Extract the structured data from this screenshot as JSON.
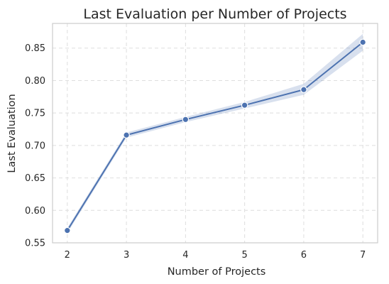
{
  "chart_data": {
    "type": "line",
    "title": "Last Evaluation per Number of Projects",
    "xlabel": "Number of Projects",
    "ylabel": "Last Evaluation",
    "x": [
      2,
      3,
      4,
      5,
      6,
      7
    ],
    "x_ticks": [
      "2",
      "3",
      "4",
      "5",
      "6",
      "7"
    ],
    "y_ticks": [
      "0.55",
      "0.60",
      "0.65",
      "0.70",
      "0.75",
      "0.80",
      "0.85"
    ],
    "y_tick_values": [
      0.55,
      0.6,
      0.65,
      0.7,
      0.75,
      0.8,
      0.85
    ],
    "xlim": [
      1.75,
      7.25
    ],
    "ylim": [
      0.55,
      0.888
    ],
    "series": [
      {
        "values": [
          0.569,
          0.716,
          0.74,
          0.762,
          0.786,
          0.859
        ],
        "ci_lower": [
          0.565,
          0.712,
          0.736,
          0.757,
          0.778,
          0.846
        ],
        "ci_upper": [
          0.573,
          0.72,
          0.744,
          0.767,
          0.795,
          0.872
        ],
        "color": "#4c72b0",
        "band_color": "#4c72b0"
      }
    ],
    "grid": true,
    "legend": "none"
  }
}
